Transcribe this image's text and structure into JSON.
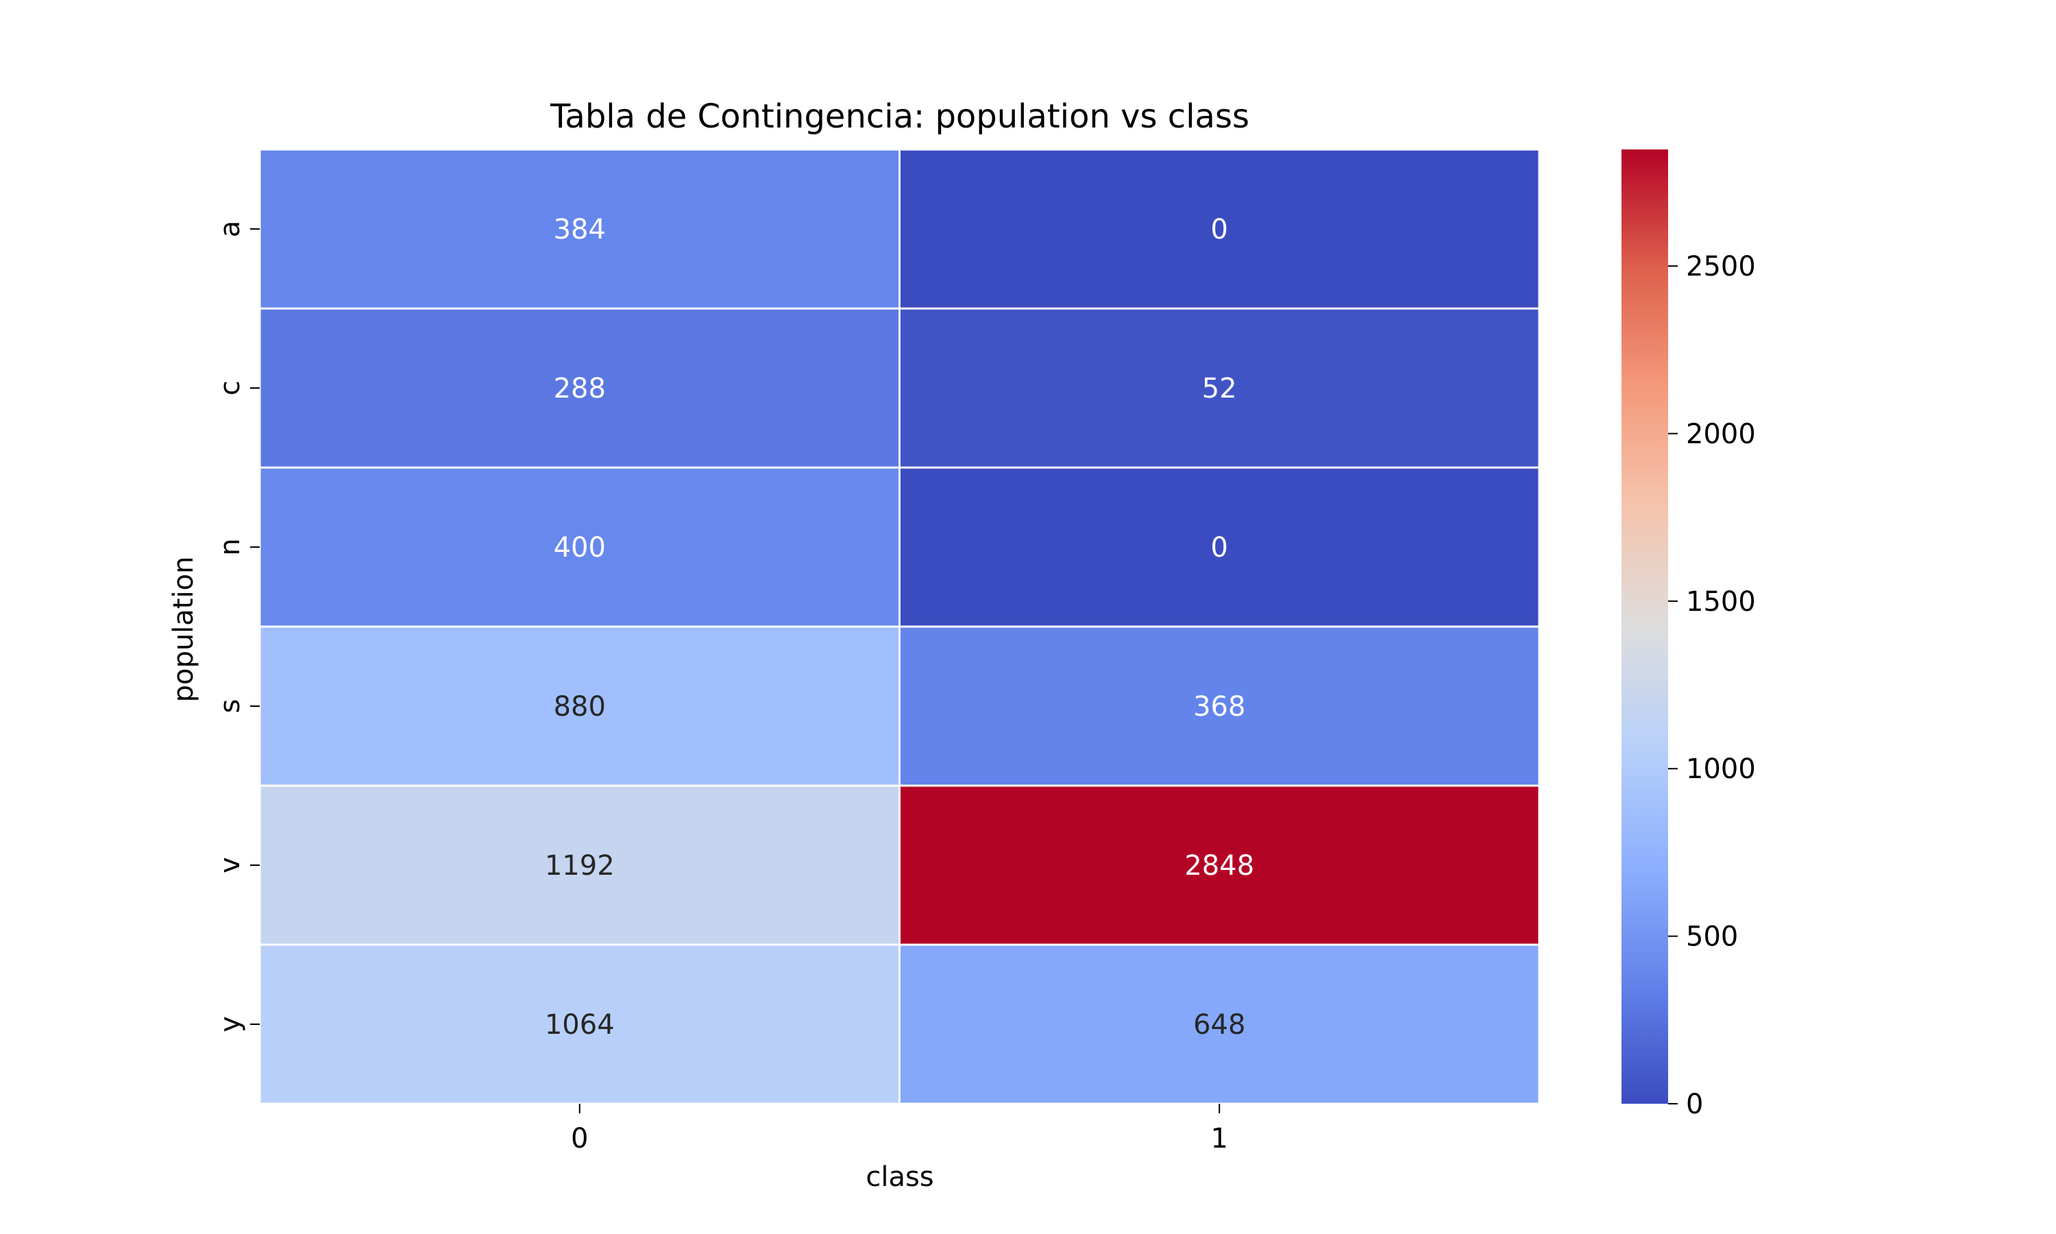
{
  "chart_data": {
    "type": "heatmap",
    "title": "Tabla de Contingencia: population vs class",
    "xlabel": "class",
    "ylabel": "population",
    "x_categories": [
      "0",
      "1"
    ],
    "y_categories": [
      "a",
      "c",
      "n",
      "s",
      "v",
      "y"
    ],
    "values": [
      [
        384,
        0
      ],
      [
        288,
        52
      ],
      [
        400,
        0
      ],
      [
        880,
        368
      ],
      [
        1192,
        2848
      ],
      [
        1064,
        648
      ]
    ],
    "colormap": "coolwarm",
    "vmin": 0,
    "vmax": 2848,
    "colorbar": {
      "ticks": [
        0,
        500,
        1000,
        1500,
        2000,
        2500
      ]
    },
    "annotation_colors": {
      "on_dark": "#ffffff",
      "on_light": "#262626"
    },
    "cell_border_color": "#ffffff"
  }
}
